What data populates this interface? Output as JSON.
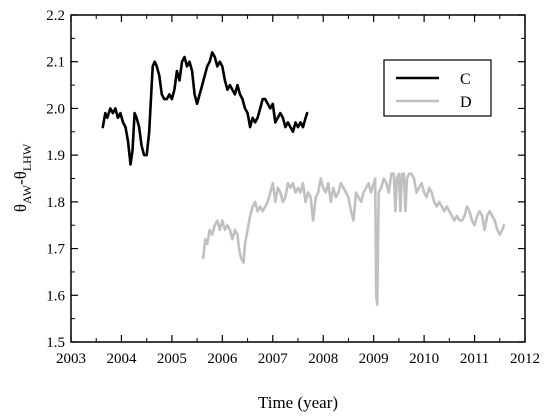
{
  "chart_data": {
    "type": "line",
    "xlabel": "Time (year)",
    "ylabel_main": "θ",
    "ylabel_sub1": "AW",
    "ylabel_mid": "-θ",
    "ylabel_sub2": "LHW",
    "xlim": [
      2003,
      2012
    ],
    "ylim": [
      1.5,
      2.2
    ],
    "xticks": [
      2003,
      2004,
      2005,
      2006,
      2007,
      2008,
      2009,
      2010,
      2011,
      2012
    ],
    "xtick_labels": [
      "2003",
      "2004",
      "2005",
      "2006",
      "2007",
      "2008",
      "2009",
      "2010",
      "2011",
      "2012"
    ],
    "yticks": [
      1.5,
      1.6,
      1.7,
      1.8,
      1.9,
      2.0,
      2.1,
      2.2
    ],
    "ytick_labels": [
      "1.5",
      "1.6",
      "1.7",
      "1.8",
      "1.9",
      "2.0",
      "2.1",
      "2.2"
    ],
    "grid": false,
    "legend_position": "top-right",
    "series": [
      {
        "name": "C",
        "color": "#000000",
        "x": [
          2003.63,
          2003.68,
          2003.72,
          2003.78,
          2003.83,
          2003.88,
          2003.93,
          2003.98,
          2004.03,
          2004.08,
          2004.13,
          2004.18,
          2004.22,
          2004.26,
          2004.3,
          2004.35,
          2004.4,
          2004.45,
          2004.5,
          2004.55,
          2004.58,
          2004.62,
          2004.66,
          2004.7,
          2004.75,
          2004.8,
          2004.85,
          2004.9,
          2004.95,
          2005.0,
          2005.05,
          2005.1,
          2005.15,
          2005.2,
          2005.25,
          2005.3,
          2005.35,
          2005.4,
          2005.45,
          2005.5,
          2005.55,
          2005.6,
          2005.65,
          2005.7,
          2005.75,
          2005.8,
          2005.85,
          2005.9,
          2005.95,
          2006.0,
          2006.05,
          2006.1,
          2006.15,
          2006.2,
          2006.25,
          2006.3,
          2006.35,
          2006.4,
          2006.45,
          2006.5,
          2006.55,
          2006.6,
          2006.65,
          2006.7,
          2006.75,
          2006.8,
          2006.85,
          2006.9,
          2006.95,
          2007.0,
          2007.05,
          2007.1,
          2007.15,
          2007.2,
          2007.25,
          2007.3,
          2007.35,
          2007.4,
          2007.45,
          2007.5,
          2007.55,
          2007.6,
          2007.65,
          2007.68
        ],
        "y": [
          1.96,
          1.99,
          1.98,
          2.0,
          1.99,
          2.0,
          1.98,
          1.99,
          1.97,
          1.96,
          1.93,
          1.88,
          1.91,
          1.99,
          1.98,
          1.96,
          1.92,
          1.9,
          1.9,
          1.95,
          2.01,
          2.09,
          2.1,
          2.09,
          2.07,
          2.03,
          2.02,
          2.02,
          2.03,
          2.02,
          2.04,
          2.08,
          2.06,
          2.1,
          2.11,
          2.09,
          2.1,
          2.08,
          2.03,
          2.01,
          2.03,
          2.05,
          2.07,
          2.09,
          2.1,
          2.12,
          2.11,
          2.09,
          2.1,
          2.09,
          2.06,
          2.04,
          2.05,
          2.04,
          2.03,
          2.05,
          2.03,
          2.02,
          2.0,
          1.99,
          1.96,
          1.98,
          1.97,
          1.98,
          2.0,
          2.02,
          2.02,
          2.01,
          2.0,
          2.01,
          1.97,
          1.98,
          1.99,
          1.98,
          1.96,
          1.97,
          1.96,
          1.95,
          1.97,
          1.96,
          1.97,
          1.96,
          1.98,
          1.99
        ]
      },
      {
        "name": "D",
        "color": "#c0c0c0",
        "x": [
          2005.62,
          2005.66,
          2005.7,
          2005.75,
          2005.8,
          2005.85,
          2005.9,
          2005.95,
          2006.0,
          2006.05,
          2006.1,
          2006.15,
          2006.2,
          2006.25,
          2006.3,
          2006.33,
          2006.37,
          2006.42,
          2006.45,
          2006.5,
          2006.55,
          2006.6,
          2006.65,
          2006.7,
          2006.75,
          2006.8,
          2006.85,
          2006.9,
          2006.95,
          2007.0,
          2007.05,
          2007.1,
          2007.15,
          2007.2,
          2007.25,
          2007.3,
          2007.35,
          2007.4,
          2007.45,
          2007.5,
          2007.55,
          2007.6,
          2007.65,
          2007.7,
          2007.75,
          2007.8,
          2007.85,
          2007.9,
          2007.95,
          2008.0,
          2008.05,
          2008.1,
          2008.15,
          2008.2,
          2008.25,
          2008.3,
          2008.35,
          2008.4,
          2008.45,
          2008.5,
          2008.55,
          2008.6,
          2008.65,
          2008.7,
          2008.75,
          2008.8,
          2008.85,
          2008.9,
          2008.95,
          2009.0,
          2009.03,
          2009.05,
          2009.07,
          2009.1,
          2009.15,
          2009.2,
          2009.25,
          2009.3,
          2009.35,
          2009.4,
          2009.43,
          2009.46,
          2009.5,
          2009.53,
          2009.56,
          2009.6,
          2009.63,
          2009.66,
          2009.7,
          2009.75,
          2009.8,
          2009.85,
          2009.9,
          2009.95,
          2010.0,
          2010.05,
          2010.1,
          2010.15,
          2010.2,
          2010.25,
          2010.3,
          2010.35,
          2010.4,
          2010.45,
          2010.5,
          2010.55,
          2010.6,
          2010.65,
          2010.7,
          2010.75,
          2010.8,
          2010.85,
          2010.9,
          2010.95,
          2011.0,
          2011.05,
          2011.1,
          2011.15,
          2011.2,
          2011.25,
          2011.3,
          2011.35,
          2011.4,
          2011.45,
          2011.5,
          2011.55,
          2011.58
        ],
        "y": [
          1.68,
          1.72,
          1.71,
          1.74,
          1.73,
          1.75,
          1.76,
          1.74,
          1.76,
          1.74,
          1.75,
          1.74,
          1.72,
          1.74,
          1.73,
          1.7,
          1.68,
          1.67,
          1.71,
          1.74,
          1.77,
          1.79,
          1.8,
          1.78,
          1.79,
          1.78,
          1.79,
          1.8,
          1.82,
          1.84,
          1.8,
          1.83,
          1.82,
          1.8,
          1.81,
          1.84,
          1.83,
          1.84,
          1.82,
          1.83,
          1.82,
          1.84,
          1.8,
          1.82,
          1.81,
          1.76,
          1.81,
          1.82,
          1.85,
          1.83,
          1.82,
          1.84,
          1.8,
          1.83,
          1.81,
          1.82,
          1.84,
          1.83,
          1.82,
          1.81,
          1.78,
          1.76,
          1.82,
          1.81,
          1.8,
          1.82,
          1.83,
          1.84,
          1.82,
          1.84,
          1.85,
          1.6,
          1.58,
          1.82,
          1.83,
          1.85,
          1.84,
          1.82,
          1.86,
          1.86,
          1.78,
          1.85,
          1.86,
          1.78,
          1.86,
          1.86,
          1.78,
          1.85,
          1.86,
          1.86,
          1.85,
          1.82,
          1.83,
          1.84,
          1.82,
          1.81,
          1.83,
          1.82,
          1.8,
          1.79,
          1.8,
          1.79,
          1.78,
          1.79,
          1.78,
          1.77,
          1.76,
          1.77,
          1.76,
          1.76,
          1.77,
          1.79,
          1.78,
          1.76,
          1.75,
          1.77,
          1.78,
          1.77,
          1.74,
          1.77,
          1.78,
          1.77,
          1.76,
          1.74,
          1.73,
          1.74,
          1.75
        ]
      }
    ]
  }
}
